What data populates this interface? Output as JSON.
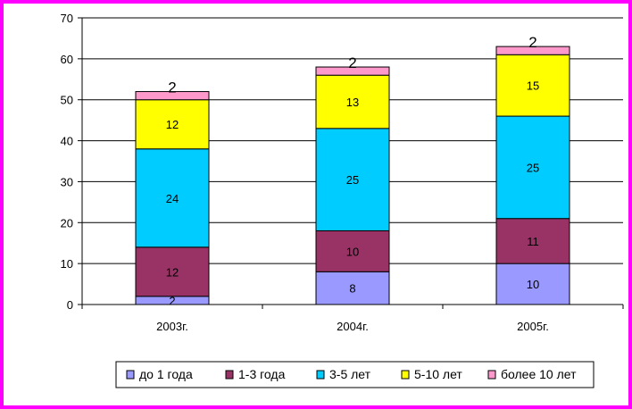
{
  "chart_data": {
    "type": "bar",
    "stacked": true,
    "categories": [
      "2003г.",
      "2004г.",
      "2005г."
    ],
    "series": [
      {
        "name": "до 1 года",
        "color": "#9999ff",
        "values": [
          2,
          8,
          10
        ]
      },
      {
        "name": "1-3 года",
        "color": "#993366",
        "values": [
          12,
          10,
          11
        ]
      },
      {
        "name": "3-5 лет",
        "color": "#00ccff",
        "values": [
          24,
          25,
          25
        ]
      },
      {
        "name": "5-10 лет",
        "color": "#ffff00",
        "values": [
          12,
          13,
          15
        ]
      },
      {
        "name": "более 10 лет",
        "color": "#ff99cc",
        "values": [
          2,
          2,
          2
        ]
      }
    ],
    "ylim": [
      0,
      70
    ],
    "yticks": [
      0,
      10,
      20,
      30,
      40,
      50,
      60,
      70
    ],
    "grid": true,
    "legend_position": "bottom",
    "frame_color": "#ff00ff"
  }
}
